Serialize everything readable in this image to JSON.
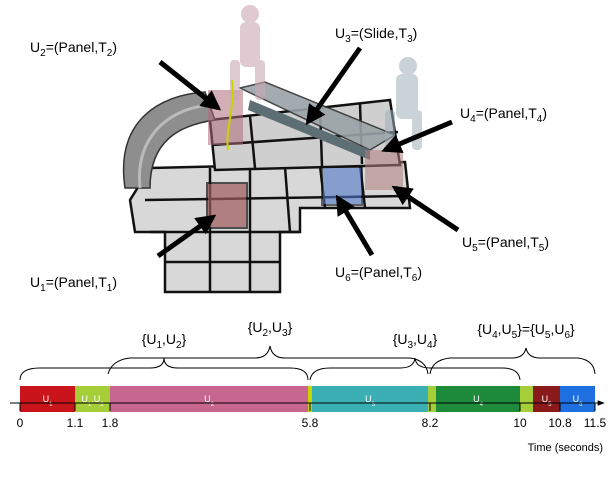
{
  "callouts": [
    {
      "parts": [
        {
          "text": "U"
        },
        {
          "sub": "2"
        },
        {
          "text": "=(Panel,T"
        },
        {
          "sub": "2"
        },
        {
          "text": ")"
        }
      ]
    },
    {
      "parts": [
        {
          "text": "U"
        },
        {
          "sub": "3"
        },
        {
          "text": "=(Slide,T"
        },
        {
          "sub": "3"
        },
        {
          "text": ")"
        }
      ]
    },
    {
      "parts": [
        {
          "text": "U"
        },
        {
          "sub": "4"
        },
        {
          "text": "=(Panel,T"
        },
        {
          "sub": "4"
        },
        {
          "text": ")"
        }
      ]
    },
    {
      "parts": [
        {
          "text": "U"
        },
        {
          "sub": "5"
        },
        {
          "text": "=(Panel,T"
        },
        {
          "sub": "5"
        },
        {
          "text": ")"
        }
      ]
    },
    {
      "parts": [
        {
          "text": "U"
        },
        {
          "sub": "6"
        },
        {
          "text": "=(Panel,T"
        },
        {
          "sub": "6"
        },
        {
          "text": ")"
        }
      ]
    },
    {
      "parts": [
        {
          "text": "U"
        },
        {
          "sub": "1"
        },
        {
          "text": "=(Panel,T"
        },
        {
          "sub": "1"
        },
        {
          "text": ")"
        }
      ]
    }
  ],
  "timeline": {
    "groups": [
      {
        "parts": [
          {
            "text": "{U"
          },
          {
            "sub": "1"
          },
          {
            "text": ",U"
          },
          {
            "sub": "2"
          },
          {
            "text": "}"
          }
        ]
      },
      {
        "parts": [
          {
            "text": "{U"
          },
          {
            "sub": "2"
          },
          {
            "text": ",U"
          },
          {
            "sub": "3"
          },
          {
            "text": "}"
          }
        ]
      },
      {
        "parts": [
          {
            "text": "{U"
          },
          {
            "sub": "3"
          },
          {
            "text": ",U"
          },
          {
            "sub": "4"
          },
          {
            "text": "}"
          }
        ]
      },
      {
        "parts": [
          {
            "text": "{U"
          },
          {
            "sub": "4"
          },
          {
            "text": ",U"
          },
          {
            "sub": "5"
          },
          {
            "text": "}={U"
          },
          {
            "sub": "5"
          },
          {
            "text": ",U"
          },
          {
            "sub": "6"
          },
          {
            "text": "}"
          }
        ]
      }
    ],
    "segments": [
      {
        "start": 0,
        "end": 1.1,
        "color": "#c9141c",
        "label": [
          {
            "text": "U"
          },
          {
            "sub": "1"
          }
        ]
      },
      {
        "start": 1.1,
        "end": 1.8,
        "color": "#a6ce39",
        "label": [
          {
            "text": "U"
          },
          {
            "sub": "1"
          },
          {
            "text": ",U"
          },
          {
            "sub": "2"
          }
        ]
      },
      {
        "start": 1.8,
        "end": 5.76,
        "color": "#c7668f",
        "label": [
          {
            "text": "U"
          },
          {
            "sub": "2"
          }
        ]
      },
      {
        "start": 5.76,
        "end": 5.84,
        "color": "#c8d400"
      },
      {
        "start": 5.84,
        "end": 8.16,
        "color": "#3ab0b5",
        "label": [
          {
            "text": "U"
          },
          {
            "sub": "3"
          }
        ]
      },
      {
        "start": 8.16,
        "end": 8.32,
        "color": "#a6ce39"
      },
      {
        "start": 8.32,
        "end": 10,
        "color": "#1e8a3c",
        "label": [
          {
            "text": "U"
          },
          {
            "sub": "4"
          }
        ]
      },
      {
        "start": 10,
        "end": 10.26,
        "color": "#a6ce39"
      },
      {
        "start": 10.26,
        "end": 10.8,
        "color": "#8a1a1a",
        "label": [
          {
            "text": "U"
          },
          {
            "sub": "5"
          }
        ]
      },
      {
        "start": 10.8,
        "end": 11.5,
        "color": "#1e6fe0",
        "label": [
          {
            "text": "U"
          },
          {
            "sub": "6"
          }
        ]
      }
    ],
    "ticks": [
      0,
      1.1,
      1.8,
      5.8,
      8.2,
      10,
      10.8,
      11.5
    ],
    "axis_label": "Time (seconds)"
  }
}
